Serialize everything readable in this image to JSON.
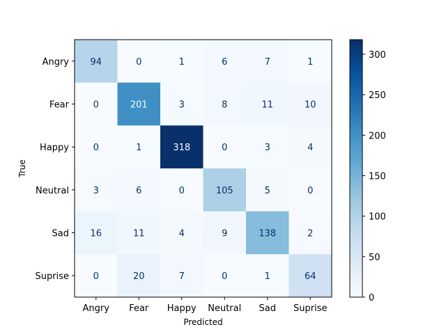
{
  "chart_data": {
    "type": "heatmap",
    "title": "",
    "xlabel": "Predicted",
    "ylabel": "True",
    "x_categories": [
      "Angry",
      "Fear",
      "Happy",
      "Neutral",
      "Sad",
      "Suprise"
    ],
    "y_categories": [
      "Angry",
      "Fear",
      "Happy",
      "Neutral",
      "Sad",
      "Suprise"
    ],
    "values": [
      [
        94,
        0,
        1,
        6,
        7,
        1
      ],
      [
        0,
        201,
        3,
        8,
        11,
        10
      ],
      [
        0,
        1,
        318,
        0,
        3,
        4
      ],
      [
        3,
        6,
        0,
        105,
        5,
        0
      ],
      [
        16,
        11,
        4,
        9,
        138,
        2
      ],
      [
        0,
        20,
        7,
        0,
        1,
        64
      ]
    ],
    "colormap": "Blues",
    "colorbar": {
      "range": [
        0,
        318
      ],
      "ticks": [
        0,
        50,
        100,
        150,
        200,
        250,
        300
      ],
      "low_color": "#f7fbff",
      "high_color": "#08306b"
    },
    "grid": false,
    "text_color_dark": "#08306b",
    "text_color_light": "#f7fbff"
  }
}
